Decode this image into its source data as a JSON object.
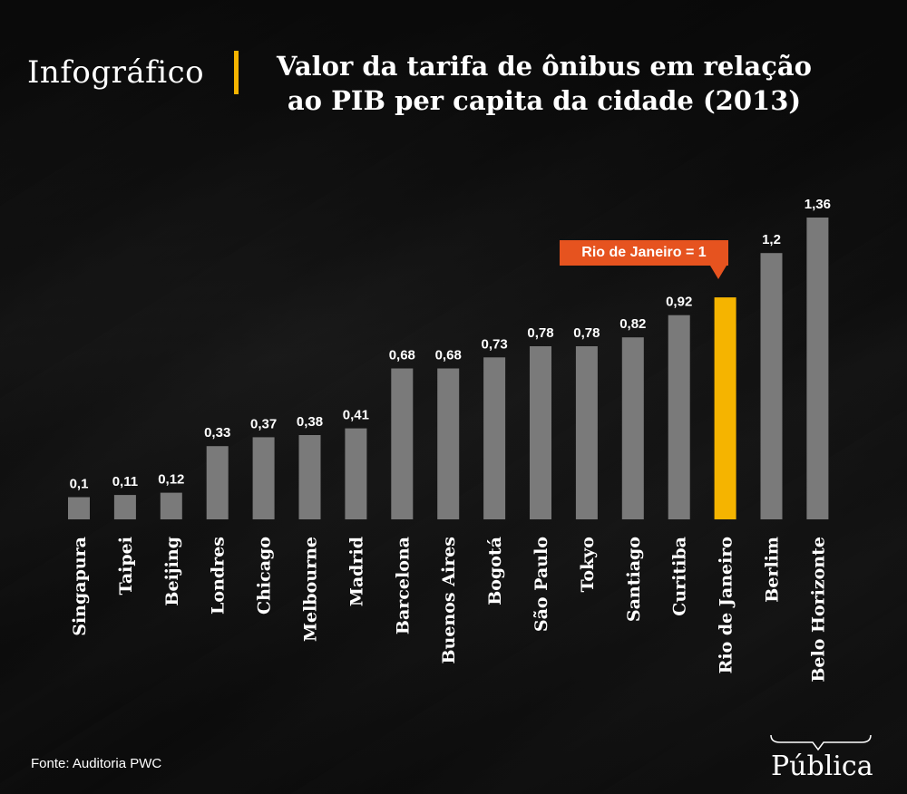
{
  "header": {
    "label": "Infográfico",
    "title_line1": "Valor da tarifa de ônibus em relação",
    "title_line2": "ao PIB per capita da cidade (2013)",
    "accent_color": "#f5b400"
  },
  "chart_data": {
    "type": "bar",
    "title": "Valor da tarifa de ônibus em relação ao PIB per capita da cidade (2013)",
    "categories": [
      "Singapura",
      "Taipei",
      "Beijing",
      "Londres",
      "Chicago",
      "Melbourne",
      "Madrid",
      "Barcelona",
      "Buenos Aires",
      "Bogotá",
      "São Paulo",
      "Tokyo",
      "Santiago",
      "Curitiba",
      "Rio de Janeiro",
      "Berlim",
      "Belo Horizonte"
    ],
    "values": [
      0.1,
      0.11,
      0.12,
      0.33,
      0.37,
      0.38,
      0.41,
      0.68,
      0.68,
      0.73,
      0.78,
      0.78,
      0.82,
      0.92,
      1,
      1.2,
      1.36
    ],
    "value_labels": [
      "0,1",
      "0,11",
      "0,12",
      "0,33",
      "0,37",
      "0,38",
      "0,41",
      "0,68",
      "0,68",
      "0,73",
      "0,78",
      "0,78",
      "0,82",
      "0,92",
      "",
      "1,2",
      "1,36"
    ],
    "highlight_category": "Rio de Janeiro",
    "bar_color": "#7a7a7a",
    "highlight_color": "#f5b400",
    "ylim": [
      0,
      1.36
    ],
    "xlabel": "",
    "ylabel": "",
    "grid": false
  },
  "callout": {
    "text": "Rio de Janeiro = 1",
    "color": "#e6531f"
  },
  "footer": {
    "source": "Fonte: Auditoria PWC",
    "logo": "Pública"
  }
}
